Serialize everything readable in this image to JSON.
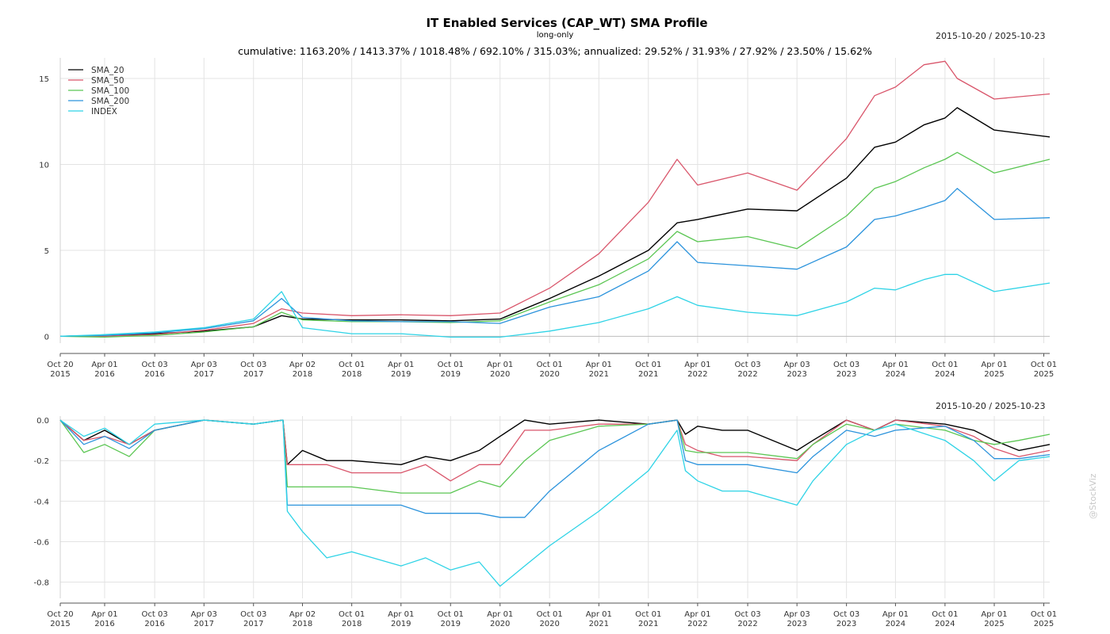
{
  "header": {
    "title": "IT Enabled Services (CAP_WT) SMA Profile",
    "subtitle": "long-only",
    "stats": "cumulative: 1163.20% / 1413.37% / 1018.48% / 692.10% / 315.03%; annualized: 29.52% / 31.93% / 27.92% / 23.50% / 15.62%",
    "date_range_top": "2015-10-20 / 2025-10-23",
    "date_range_bottom": "2015-10-20 / 2025-10-23",
    "watermark": "@StockViz"
  },
  "chart_data": [
    {
      "type": "line",
      "title": "IT Enabled Services (CAP_WT) SMA Profile",
      "ylim": [
        -0.4,
        16.2
      ],
      "yticks": [
        0,
        5,
        10,
        15
      ],
      "ytick_labels": [
        "0",
        "5",
        "10",
        "15"
      ],
      "xlim": [
        "2015-10-20",
        "2025-10-23"
      ],
      "xtick_dates": [
        "2015-10-20",
        "2016-04-01",
        "2016-10-03",
        "2017-04-03",
        "2017-10-03",
        "2018-04-02",
        "2018-10-01",
        "2019-04-01",
        "2019-10-01",
        "2020-04-01",
        "2020-10-01",
        "2021-04-01",
        "2021-10-01",
        "2022-04-01",
        "2022-10-03",
        "2023-04-03",
        "2023-10-03",
        "2024-04-01",
        "2024-10-01",
        "2025-04-01",
        "2025-10-01"
      ],
      "xtick_labels": [
        [
          "Oct 20",
          "2015"
        ],
        [
          "Apr 01",
          "2016"
        ],
        [
          "Oct 03",
          "2016"
        ],
        [
          "Apr 03",
          "2017"
        ],
        [
          "Oct 03",
          "2017"
        ],
        [
          "Apr 02",
          "2018"
        ],
        [
          "Oct 01",
          "2018"
        ],
        [
          "Apr 01",
          "2019"
        ],
        [
          "Oct 01",
          "2019"
        ],
        [
          "Apr 01",
          "2020"
        ],
        [
          "Oct 01",
          "2020"
        ],
        [
          "Apr 01",
          "2021"
        ],
        [
          "Oct 01",
          "2021"
        ],
        [
          "Apr 01",
          "2022"
        ],
        [
          "Oct 03",
          "2022"
        ],
        [
          "Apr 03",
          "2023"
        ],
        [
          "Oct 03",
          "2023"
        ],
        [
          "Apr 01",
          "2024"
        ],
        [
          "Oct 01",
          "2024"
        ],
        [
          "Apr 01",
          "2025"
        ],
        [
          "Oct 01",
          "2025"
        ]
      ],
      "grid": true,
      "legend": "top-left",
      "x": [
        "2015-10-20",
        "2016-04-01",
        "2016-10-03",
        "2017-04-03",
        "2017-10-03",
        "2018-01-15",
        "2018-04-02",
        "2018-10-01",
        "2019-04-01",
        "2019-10-01",
        "2020-04-01",
        "2020-10-01",
        "2021-04-01",
        "2021-10-01",
        "2022-01-15",
        "2022-04-01",
        "2022-10-03",
        "2023-04-03",
        "2023-10-03",
        "2024-01-15",
        "2024-04-01",
        "2024-07-15",
        "2024-10-01",
        "2024-11-15",
        "2025-04-01",
        "2025-10-23"
      ],
      "series": [
        {
          "name": "SMA_20",
          "color": "#000000",
          "values": [
            0,
            0.05,
            0.15,
            0.3,
            0.55,
            1.2,
            1.0,
            0.95,
            0.95,
            0.9,
            1.0,
            2.2,
            3.5,
            5.0,
            6.6,
            6.8,
            7.4,
            7.3,
            9.2,
            11.0,
            11.3,
            12.3,
            12.7,
            13.3,
            12.0,
            11.6
          ]
        },
        {
          "name": "SMA_50",
          "color": "#d9566b",
          "values": [
            0,
            0.0,
            0.1,
            0.35,
            0.75,
            1.6,
            1.35,
            1.2,
            1.25,
            1.2,
            1.35,
            2.8,
            4.8,
            7.8,
            10.3,
            8.8,
            9.5,
            8.5,
            11.5,
            14.0,
            14.5,
            15.8,
            16.0,
            15.0,
            13.8,
            14.1
          ]
        },
        {
          "name": "SMA_100",
          "color": "#5bc653",
          "values": [
            0,
            -0.05,
            0.05,
            0.25,
            0.55,
            1.4,
            0.95,
            0.85,
            0.85,
            0.8,
            0.9,
            2.0,
            3.0,
            4.5,
            6.1,
            5.5,
            5.8,
            5.1,
            7.0,
            8.6,
            9.0,
            9.8,
            10.3,
            10.7,
            9.5,
            10.3
          ]
        },
        {
          "name": "SMA_200",
          "color": "#2b93dc",
          "values": [
            0,
            0.05,
            0.2,
            0.45,
            0.9,
            2.2,
            1.1,
            0.9,
            0.85,
            0.85,
            0.75,
            1.7,
            2.3,
            3.8,
            5.5,
            4.3,
            4.1,
            3.9,
            5.2,
            6.8,
            7.0,
            7.5,
            7.9,
            8.6,
            6.8,
            6.9
          ]
        },
        {
          "name": "INDEX",
          "color": "#2ed3e6",
          "values": [
            0,
            0.1,
            0.25,
            0.5,
            1.0,
            2.6,
            0.5,
            0.15,
            0.15,
            -0.05,
            -0.05,
            0.3,
            0.8,
            1.6,
            2.3,
            1.8,
            1.4,
            1.2,
            2.0,
            2.8,
            2.7,
            3.3,
            3.6,
            3.6,
            2.6,
            3.1
          ]
        }
      ]
    },
    {
      "type": "line",
      "ylim": [
        -0.88,
        0.02
      ],
      "yticks": [
        0.0,
        -0.2,
        -0.4,
        -0.6,
        -0.8
      ],
      "ytick_labels": [
        "0.0",
        "-0.2",
        "-0.4",
        "-0.6",
        "-0.8"
      ],
      "xlim": [
        "2015-10-20",
        "2025-10-23"
      ],
      "grid": true,
      "x": [
        "2015-10-20",
        "2016-01-15",
        "2016-04-01",
        "2016-07-01",
        "2016-10-03",
        "2017-04-03",
        "2017-10-03",
        "2018-01-20",
        "2018-02-05",
        "2018-04-02",
        "2018-07-01",
        "2018-10-01",
        "2019-04-01",
        "2019-07-01",
        "2019-10-01",
        "2020-01-15",
        "2020-04-01",
        "2020-07-01",
        "2020-10-01",
        "2021-04-01",
        "2021-10-01",
        "2022-01-15",
        "2022-02-15",
        "2022-04-01",
        "2022-07-01",
        "2022-10-03",
        "2023-04-03",
        "2023-06-01",
        "2023-10-03",
        "2024-01-15",
        "2024-04-01",
        "2024-10-01",
        "2025-01-15",
        "2025-04-01",
        "2025-07-01",
        "2025-10-23"
      ],
      "series": [
        {
          "name": "SMA_20",
          "values": [
            0,
            -0.1,
            -0.05,
            -0.12,
            -0.05,
            0,
            -0.02,
            0,
            -0.22,
            -0.15,
            -0.2,
            -0.2,
            -0.22,
            -0.18,
            -0.2,
            -0.15,
            -0.08,
            0,
            -0.02,
            0,
            -0.02,
            0,
            -0.07,
            -0.03,
            -0.05,
            -0.05,
            -0.15,
            -0.1,
            0,
            -0.05,
            0,
            -0.02,
            -0.05,
            -0.1,
            -0.15,
            -0.12
          ]
        },
        {
          "name": "SMA_50",
          "values": [
            0,
            -0.1,
            -0.08,
            -0.12,
            -0.05,
            0,
            -0.02,
            0,
            -0.22,
            -0.22,
            -0.22,
            -0.26,
            -0.26,
            -0.22,
            -0.3,
            -0.22,
            -0.22,
            -0.05,
            -0.05,
            -0.02,
            -0.02,
            0,
            -0.12,
            -0.15,
            -0.18,
            -0.18,
            -0.2,
            -0.12,
            0,
            -0.05,
            0,
            -0.03,
            -0.08,
            -0.14,
            -0.18,
            -0.15
          ]
        },
        {
          "name": "SMA_100",
          "values": [
            0,
            -0.16,
            -0.12,
            -0.18,
            -0.05,
            0,
            -0.02,
            0,
            -0.33,
            -0.33,
            -0.33,
            -0.33,
            -0.36,
            -0.36,
            -0.36,
            -0.3,
            -0.33,
            -0.2,
            -0.1,
            -0.03,
            -0.02,
            0,
            -0.15,
            -0.16,
            -0.16,
            -0.16,
            -0.19,
            -0.12,
            -0.02,
            -0.05,
            -0.02,
            -0.05,
            -0.1,
            -0.12,
            -0.1,
            -0.07
          ]
        },
        {
          "name": "SMA_200",
          "values": [
            0,
            -0.12,
            -0.08,
            -0.14,
            -0.05,
            0,
            -0.02,
            0,
            -0.42,
            -0.42,
            -0.42,
            -0.42,
            -0.42,
            -0.46,
            -0.46,
            -0.46,
            -0.48,
            -0.48,
            -0.35,
            -0.15,
            -0.02,
            0,
            -0.2,
            -0.22,
            -0.22,
            -0.22,
            -0.26,
            -0.18,
            -0.05,
            -0.08,
            -0.05,
            -0.03,
            -0.1,
            -0.19,
            -0.19,
            -0.17
          ]
        },
        {
          "name": "INDEX",
          "values": [
            0,
            -0.08,
            -0.04,
            -0.12,
            -0.02,
            0,
            -0.02,
            0,
            -0.45,
            -0.55,
            -0.68,
            -0.65,
            -0.72,
            -0.68,
            -0.74,
            -0.7,
            -0.82,
            -0.72,
            -0.62,
            -0.45,
            -0.25,
            -0.05,
            -0.25,
            -0.3,
            -0.35,
            -0.35,
            -0.42,
            -0.3,
            -0.12,
            -0.05,
            -0.02,
            -0.1,
            -0.2,
            -0.3,
            -0.2,
            -0.18
          ]
        }
      ]
    }
  ]
}
